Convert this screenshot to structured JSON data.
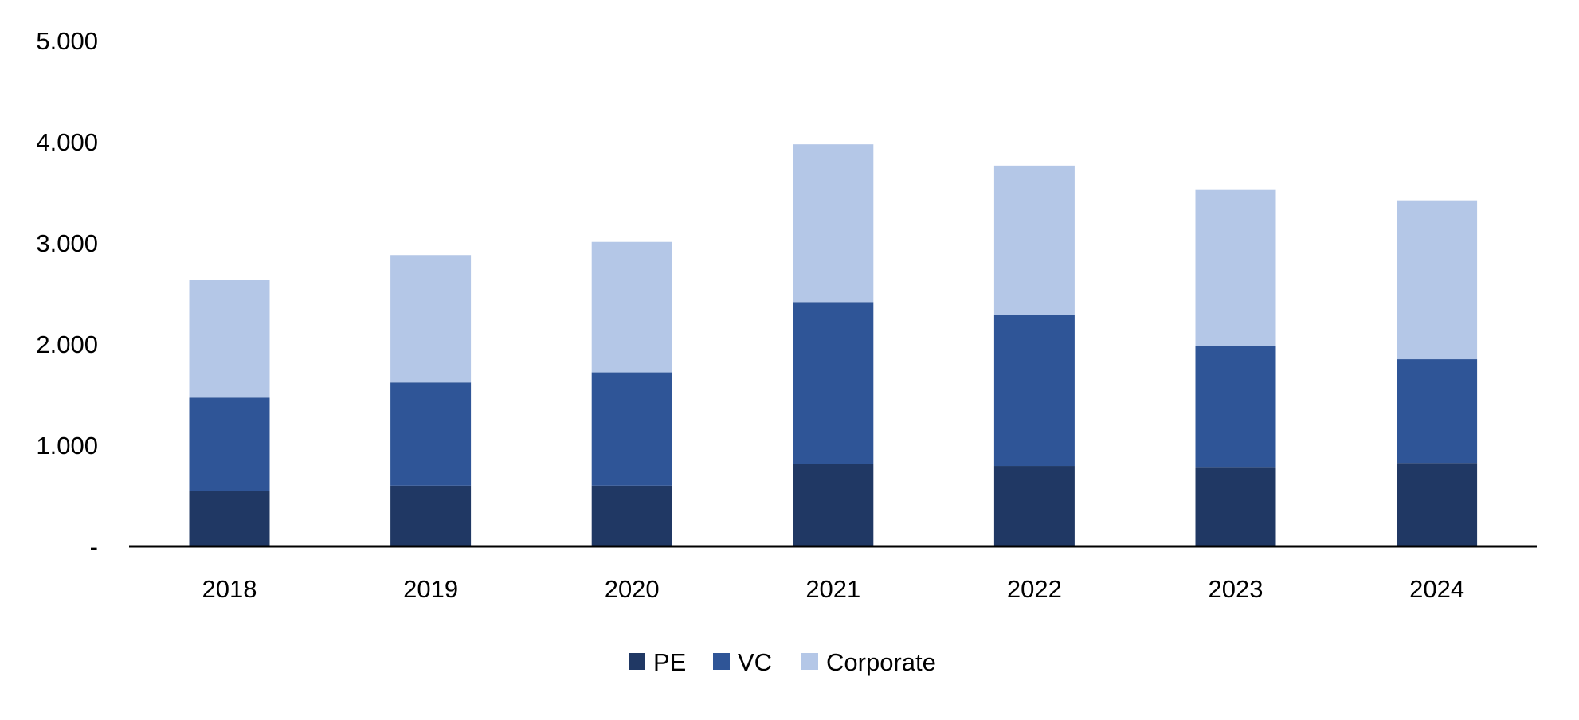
{
  "chart_data": {
    "type": "bar",
    "stacked": true,
    "categories": [
      "2018",
      "2019",
      "2020",
      "2021",
      "2022",
      "2023",
      "2024"
    ],
    "series": [
      {
        "name": "PE",
        "color": "#203864",
        "values": [
          550,
          600,
          600,
          815,
          795,
          785,
          825
        ]
      },
      {
        "name": "VC",
        "color": "#2F5597",
        "values": [
          920,
          1020,
          1120,
          1600,
          1490,
          1195,
          1025
        ]
      },
      {
        "name": "Corporate",
        "color": "#B4C7E7",
        "values": [
          1160,
          1260,
          1290,
          1560,
          1480,
          1550,
          1570
        ]
      }
    ],
    "yticks": [
      {
        "value": 0,
        "label": "-"
      },
      {
        "value": 1000,
        "label": "1.000"
      },
      {
        "value": 2000,
        "label": "2.000"
      },
      {
        "value": 3000,
        "label": "3.000"
      },
      {
        "value": 4000,
        "label": "4.000"
      },
      {
        "value": 5000,
        "label": "5.000"
      }
    ],
    "ylim": [
      0,
      5000
    ],
    "grid": false,
    "legend_position": "bottom",
    "title": "",
    "xlabel": "",
    "ylabel": ""
  }
}
